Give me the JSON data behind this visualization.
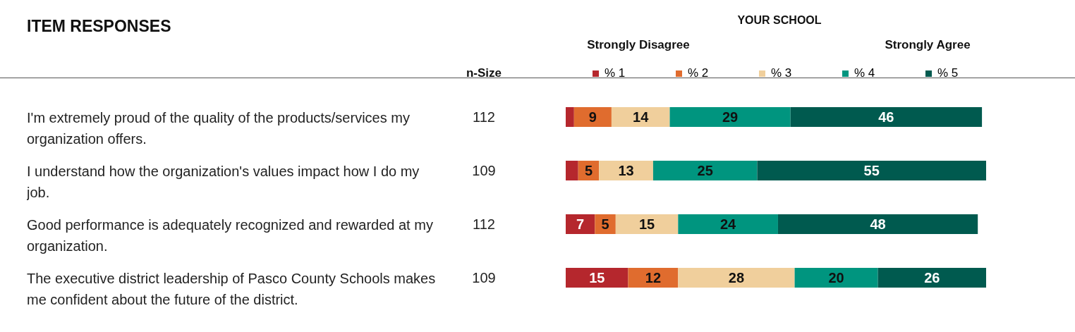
{
  "chart_data": {
    "type": "bar",
    "orientation": "horizontal",
    "stacked": true,
    "title": "ITEM RESPONSES",
    "categories": [
      "I'm extremely proud of the quality of the products/services my organization offers.",
      "I understand how the organization's values impact how I do my job.",
      "Good performance is adequately recognized and rewarded at my organization.",
      "The executive district leadership of Pasco County Schools makes me confident about the future of the district."
    ],
    "series": [
      {
        "name": "% 1",
        "color": "#b5272d",
        "values": [
          2,
          3,
          7,
          15
        ],
        "value_labels": [
          null,
          null,
          "7",
          "15"
        ]
      },
      {
        "name": "% 2",
        "color": "#e06c2e",
        "values": [
          9,
          5,
          5,
          12
        ],
        "value_labels": [
          "9",
          "5",
          "5",
          "12"
        ]
      },
      {
        "name": "% 3",
        "color": "#f0cf9c",
        "values": [
          14,
          13,
          15,
          28
        ],
        "value_labels": [
          "14",
          "13",
          "15",
          "28"
        ]
      },
      {
        "name": "% 4",
        "color": "#00957f",
        "values": [
          29,
          25,
          24,
          20
        ],
        "value_labels": [
          "29",
          "25",
          "24",
          "20"
        ]
      },
      {
        "name": "% 5",
        "color": "#005a4f",
        "values": [
          46,
          55,
          48,
          26
        ],
        "value_labels": [
          "46",
          "55",
          "48",
          "26"
        ]
      }
    ],
    "xlim": [
      0,
      101
    ],
    "tick_labels": "y",
    "grid": false,
    "legend": "top",
    "annotations": [
      "YOUR SCHOOL",
      "Strongly Disagree",
      "Strongly Agree",
      "n-Size",
      "112",
      "109",
      "112",
      "109"
    ]
  }
}
